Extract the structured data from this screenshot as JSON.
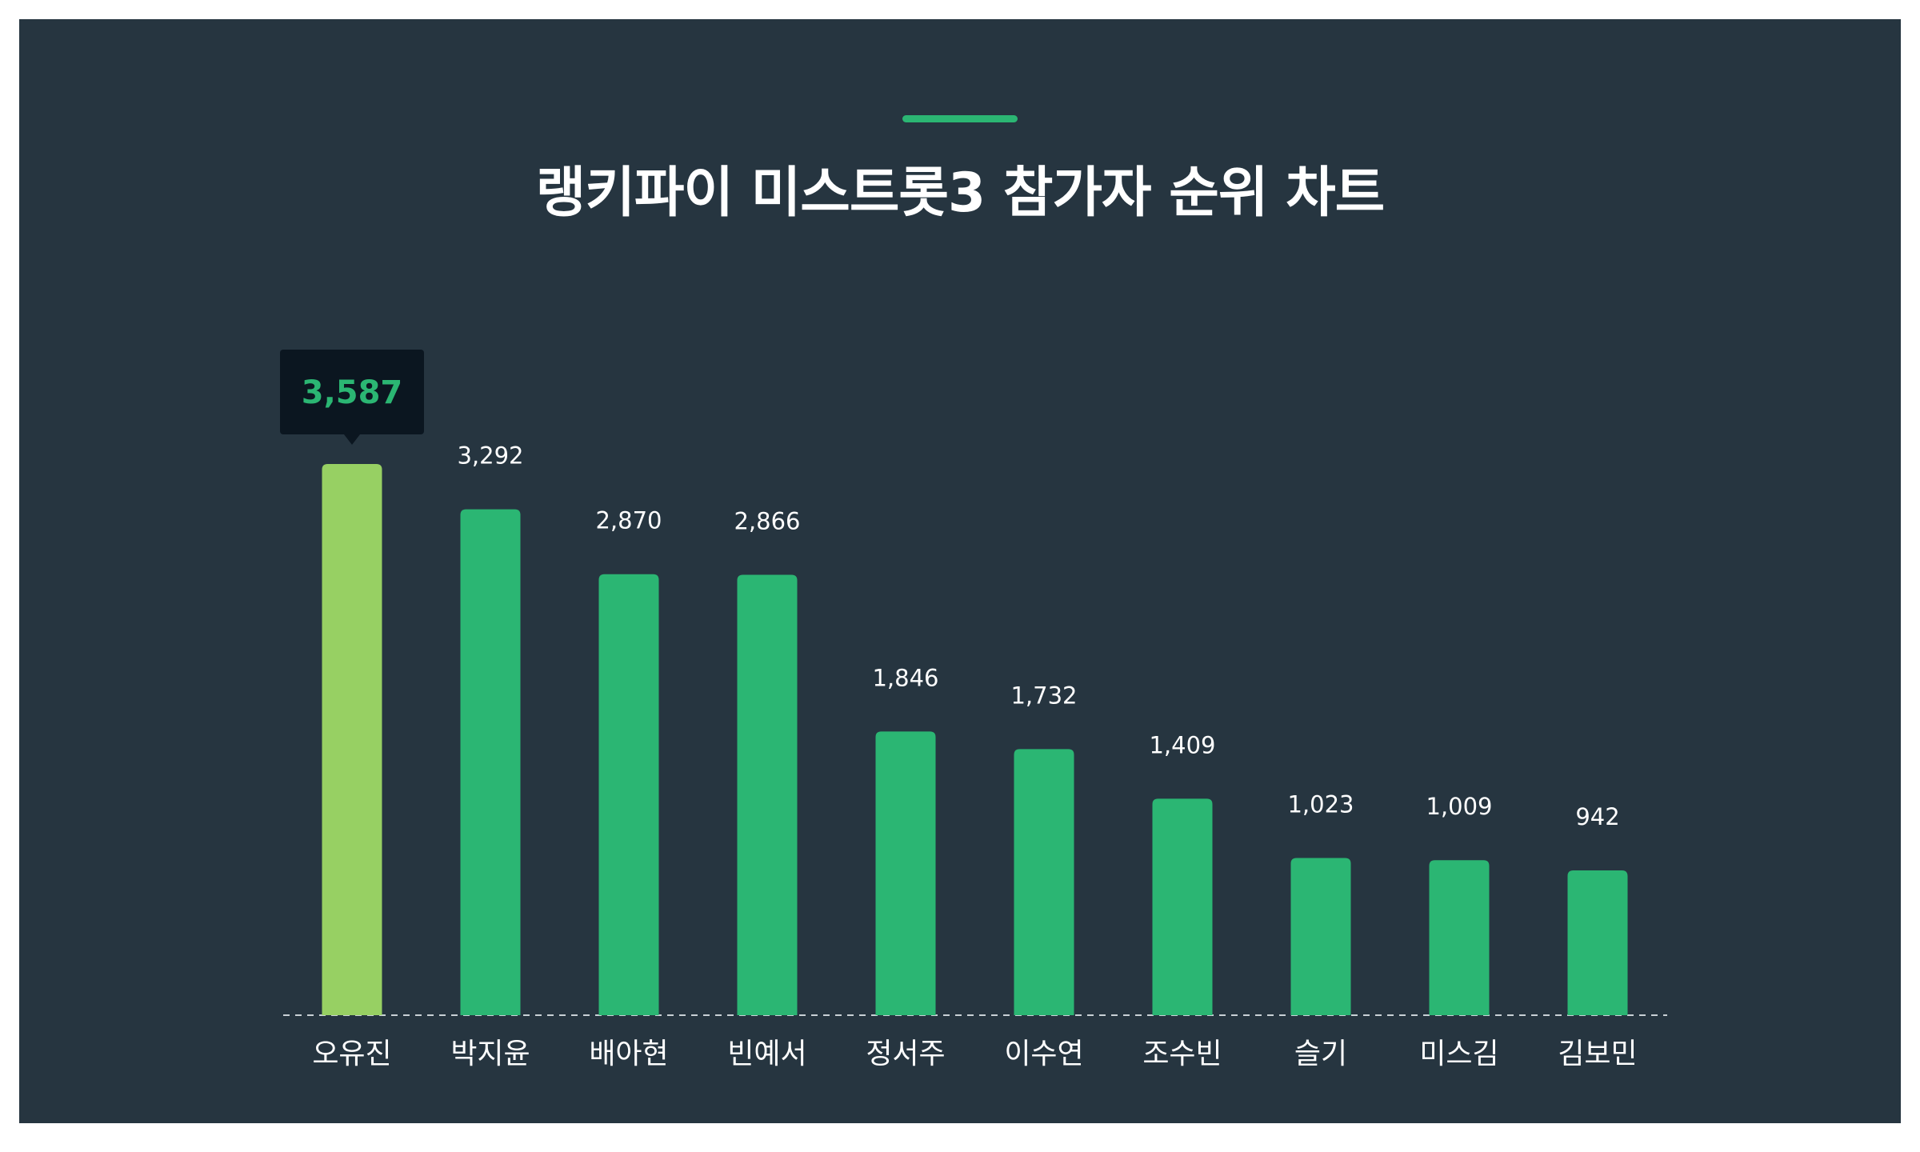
{
  "header": {
    "title": "랭키파이 미스트롯3 참가자 순위 차트"
  },
  "colors": {
    "background": "#263540",
    "bar": "#2bb673",
    "bar_highlight": "#97d063",
    "tooltip_bg": "#0b1620",
    "accent": "#2bb673"
  },
  "chart_data": {
    "type": "bar",
    "title": "랭키파이 미스트롯3 참가자 순위 차트",
    "categories": [
      "오유진",
      "박지윤",
      "배아현",
      "빈예서",
      "정서주",
      "이수연",
      "조수빈",
      "슬기",
      "미스김",
      "김보민"
    ],
    "values": [
      3587,
      3292,
      2870,
      2866,
      1846,
      1732,
      1409,
      1023,
      1009,
      942
    ],
    "value_labels": [
      "3,587",
      "3,292",
      "2,870",
      "2,866",
      "1,846",
      "1,732",
      "1,409",
      "1,023",
      "1,009",
      "942"
    ],
    "highlight_index": 0,
    "xlabel": "",
    "ylabel": "",
    "ylim": [
      0,
      3587
    ],
    "grid": false,
    "legend": "none"
  }
}
